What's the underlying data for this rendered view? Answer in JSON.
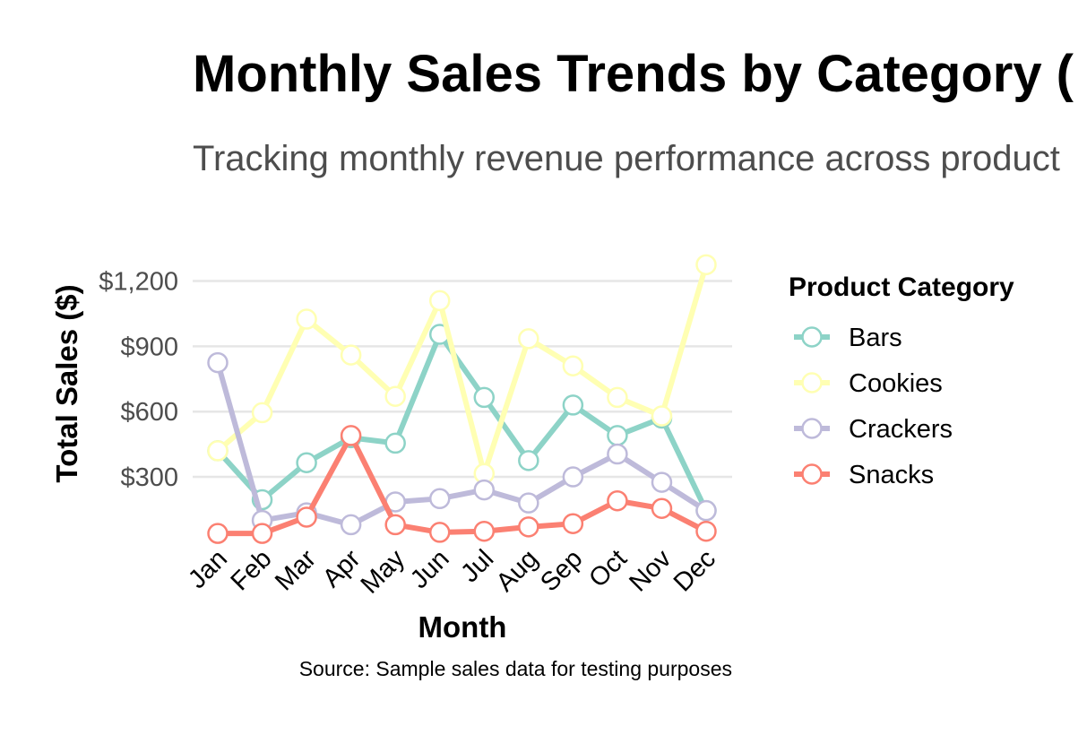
{
  "chart_data": {
    "type": "line",
    "title": "Monthly Sales Trends by Category (",
    "subtitle": "Tracking monthly revenue performance across product",
    "xlabel": "Month",
    "ylabel": "Total Sales ($)",
    "caption": "Source: Sample sales data for testing purposes",
    "categories": [
      "Jan",
      "Feb",
      "Mar",
      "Apr",
      "May",
      "Jun",
      "Jul",
      "Aug",
      "Sep",
      "Oct",
      "Nov",
      "Dec"
    ],
    "y_ticks": [
      300,
      600,
      900,
      1200
    ],
    "y_tick_labels": [
      "$300",
      "$600",
      "$900",
      "$1,200"
    ],
    "ylim": [
      20,
      1330
    ],
    "grid": true,
    "legend": {
      "title": "Product Category",
      "position": "right"
    },
    "series": [
      {
        "name": "Bars",
        "color": "#8dd3c7",
        "values": [
          420,
          195,
          365,
          480,
          455,
          955,
          665,
          375,
          630,
          490,
          570,
          145
        ]
      },
      {
        "name": "Cookies",
        "color": "#ffffb3",
        "values": [
          420,
          595,
          1025,
          860,
          670,
          1110,
          315,
          935,
          810,
          665,
          580,
          1275
        ]
      },
      {
        "name": "Crackers",
        "color": "#bebada",
        "values": [
          825,
          100,
          135,
          80,
          185,
          200,
          240,
          180,
          300,
          405,
          275,
          145
        ]
      },
      {
        "name": "Snacks",
        "color": "#fb8072",
        "values": [
          40,
          40,
          115,
          490,
          80,
          45,
          50,
          70,
          85,
          190,
          155,
          50
        ]
      }
    ]
  }
}
